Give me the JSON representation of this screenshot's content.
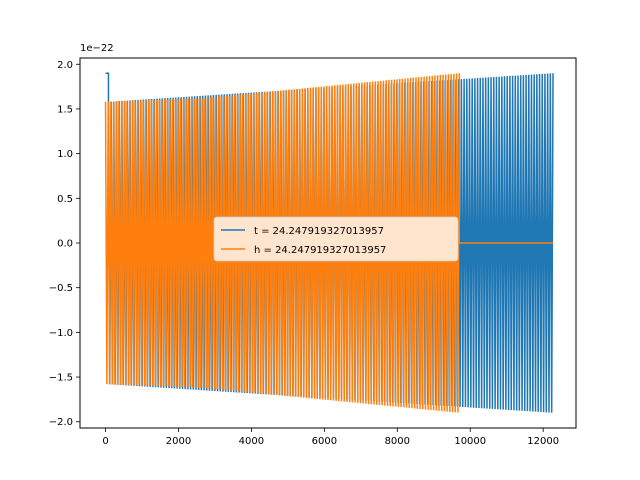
{
  "chart_data": {
    "type": "line",
    "title": "",
    "xlabel": "",
    "ylabel": "",
    "xlim": [
      -700,
      12900
    ],
    "ylim": [
      -2.07,
      2.07
    ],
    "y_scale_label": "1e−22",
    "xticks": [
      0,
      2000,
      4000,
      6000,
      8000,
      10000,
      12000
    ],
    "xtick_labels": [
      "0",
      "2000",
      "4000",
      "6000",
      "8000",
      "10000",
      "12000"
    ],
    "yticks": [
      -2.0,
      -1.5,
      -1.0,
      -0.5,
      0.0,
      0.5,
      1.0,
      1.5,
      2.0
    ],
    "ytick_labels": [
      "−2.0",
      "−1.5",
      "−1.0",
      "−0.5",
      "0.0",
      "0.5",
      "1.0",
      "1.5",
      "2.0"
    ],
    "grid": false,
    "legend_position": "center",
    "series": [
      {
        "name": "t = 24.247919327013957",
        "color": "#1f77b4",
        "x_start": 0,
        "x_end": 12270,
        "segments": [
          {
            "kind": "flat",
            "x": [
              0,
              80
            ],
            "value": 1.9
          },
          {
            "kind": "oscillation",
            "x": [
              80,
              12270
            ],
            "amp_start": 1.58,
            "amp_end": 1.9,
            "cycles": 165
          }
        ]
      },
      {
        "name": "h = 24.247919327013957",
        "color": "#ff7f0e",
        "x_start": 0,
        "x_end": 12270,
        "segments": [
          {
            "kind": "oscillation",
            "x": [
              0,
              2650
            ],
            "amp_start": 1.58,
            "amp_end": 1.62,
            "cycles": 36
          },
          {
            "kind": "oscillation",
            "x": [
              2650,
              9700
            ],
            "amp_start": 1.62,
            "amp_end": 1.9,
            "cycles": 95
          },
          {
            "kind": "flat",
            "x": [
              9700,
              12270
            ],
            "value": 0.0
          }
        ]
      }
    ]
  }
}
